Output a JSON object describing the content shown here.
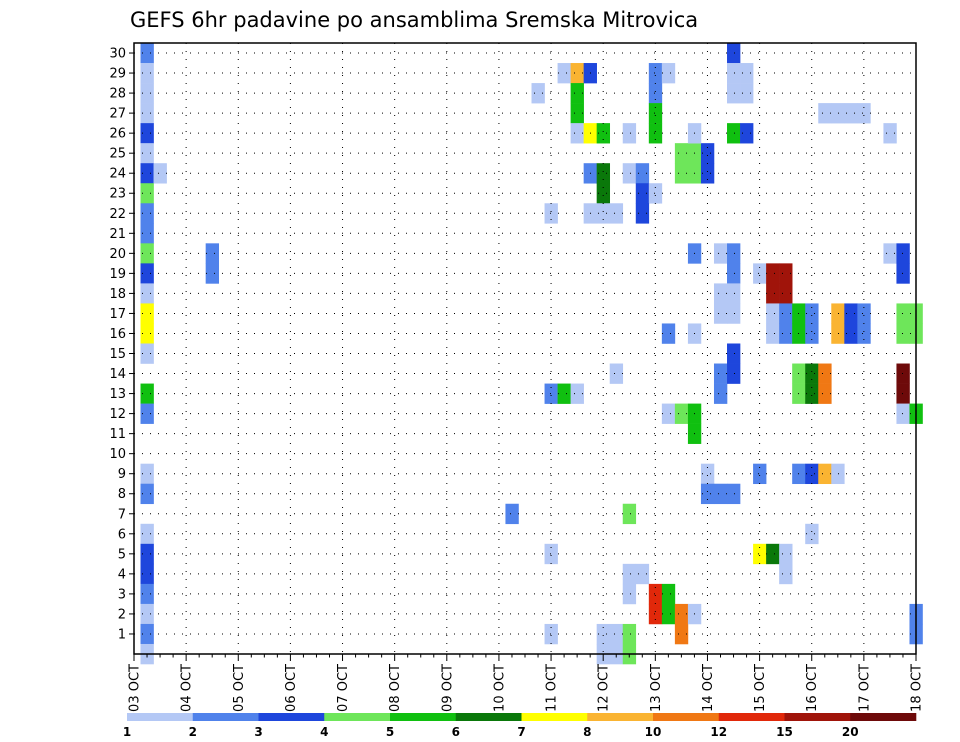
{
  "chart_data": {
    "type": "heatmap",
    "title": "GEFS 6hr padavine po ansamblima Sremska Mitrovica",
    "xlabel": "",
    "ylabel": "",
    "x_ticks": [
      "03 OCT",
      "04 OCT",
      "05 OCT",
      "06 OCT",
      "07 OCT",
      "08 OCT",
      "09 OCT",
      "10 OCT",
      "11 OCT",
      "12 OCT",
      "13 OCT",
      "14 OCT",
      "15 OCT",
      "16 OCT",
      "17 OCT",
      "18 OCT"
    ],
    "y_ticks": [
      "1",
      "2",
      "3",
      "4",
      "5",
      "6",
      "7",
      "8",
      "9",
      "10",
      "11",
      "12",
      "13",
      "14",
      "15",
      "16",
      "17",
      "18",
      "19",
      "20",
      "21",
      "22",
      "23",
      "24",
      "25",
      "26",
      "27",
      "28",
      "29",
      "30"
    ],
    "x_range": [
      "03 OCT 00Z",
      "18 OCT 00Z"
    ],
    "y_range": [
      0,
      30
    ],
    "time_step_hours": 6,
    "grid": true,
    "legend": "bottom",
    "color_levels": [
      1,
      2,
      3,
      4,
      5,
      6,
      7,
      8,
      10,
      12,
      15,
      20
    ],
    "level_labels": [
      "1",
      "2",
      "3",
      "4",
      "5",
      "6",
      "7",
      "8",
      "10",
      "12",
      "15",
      "20"
    ],
    "level_colors": [
      "#b4c8f5",
      "#5082eb",
      "#1e46dc",
      "#6ee65a",
      "#10c010",
      "#0a780a",
      "#ffff00",
      "#fab432",
      "#f07814",
      "#e1280a",
      "#a0140a",
      "#6e0a0a"
    ],
    "cells": [
      {
        "member": 30,
        "t": 1,
        "level": 2
      },
      {
        "member": 29,
        "t": 1,
        "level": 1
      },
      {
        "member": 28,
        "t": 1,
        "level": 1
      },
      {
        "member": 27,
        "t": 1,
        "level": 1
      },
      {
        "member": 26,
        "t": 1,
        "level": 3
      },
      {
        "member": 25,
        "t": 1,
        "level": 1
      },
      {
        "member": 24,
        "t": 1,
        "level": 3
      },
      {
        "member": 24,
        "t": 2,
        "level": 1
      },
      {
        "member": 23,
        "t": 1,
        "level": 4
      },
      {
        "member": 22,
        "t": 1,
        "level": 2
      },
      {
        "member": 21,
        "t": 1,
        "level": 2
      },
      {
        "member": 20,
        "t": 1,
        "level": 4
      },
      {
        "member": 19,
        "t": 1,
        "level": 3
      },
      {
        "member": 18,
        "t": 1,
        "level": 1
      },
      {
        "member": 17,
        "t": 1,
        "level": 7
      },
      {
        "member": 16,
        "t": 1,
        "level": 7
      },
      {
        "member": 15,
        "t": 1,
        "level": 1
      },
      {
        "member": 13,
        "t": 1,
        "level": 5
      },
      {
        "member": 12,
        "t": 1,
        "level": 2
      },
      {
        "member": 9,
        "t": 1,
        "level": 1
      },
      {
        "member": 8,
        "t": 1,
        "level": 2
      },
      {
        "member": 6,
        "t": 1,
        "level": 1
      },
      {
        "member": 5,
        "t": 1,
        "level": 3
      },
      {
        "member": 4,
        "t": 1,
        "level": 3
      },
      {
        "member": 3,
        "t": 1,
        "level": 2
      },
      {
        "member": 2,
        "t": 1,
        "level": 1
      },
      {
        "member": 1,
        "t": 1,
        "level": 2
      },
      {
        "member": 0,
        "t": 1,
        "level": 1
      },
      {
        "member": 20,
        "t": 6,
        "level": 2
      },
      {
        "member": 19,
        "t": 6,
        "level": 2
      },
      {
        "member": 7,
        "t": 29,
        "level": 2
      },
      {
        "member": 28,
        "t": 31,
        "level": 1
      },
      {
        "member": 13,
        "t": 32,
        "level": 2
      },
      {
        "member": 22,
        "t": 32,
        "level": 1
      },
      {
        "member": 5,
        "t": 32,
        "level": 1
      },
      {
        "member": 1,
        "t": 32,
        "level": 1
      },
      {
        "member": 29,
        "t": 33,
        "level": 1
      },
      {
        "member": 29,
        "t": 34,
        "level": 8
      },
      {
        "member": 29,
        "t": 35,
        "level": 3
      },
      {
        "member": 28,
        "t": 34,
        "level": 5
      },
      {
        "member": 27,
        "t": 34,
        "level": 5
      },
      {
        "member": 26,
        "t": 34,
        "level": 1
      },
      {
        "member": 26,
        "t": 35,
        "level": 7
      },
      {
        "member": 26,
        "t": 36,
        "level": 5
      },
      {
        "member": 24,
        "t": 35,
        "level": 2
      },
      {
        "member": 24,
        "t": 36,
        "level": 6
      },
      {
        "member": 23,
        "t": 36,
        "level": 6
      },
      {
        "member": 22,
        "t": 35,
        "level": 1
      },
      {
        "member": 22,
        "t": 36,
        "level": 1
      },
      {
        "member": 22,
        "t": 37,
        "level": 1
      },
      {
        "member": 13,
        "t": 33,
        "level": 5
      },
      {
        "member": 13,
        "t": 34,
        "level": 1
      },
      {
        "member": 14,
        "t": 37,
        "level": 1
      },
      {
        "member": 1,
        "t": 36,
        "level": 1
      },
      {
        "member": 1,
        "t": 37,
        "level": 1
      },
      {
        "member": 1,
        "t": 38,
        "level": 4
      },
      {
        "member": 0,
        "t": 36,
        "level": 1
      },
      {
        "member": 0,
        "t": 37,
        "level": 1
      },
      {
        "member": 0,
        "t": 38,
        "level": 4
      },
      {
        "member": 4,
        "t": 38,
        "level": 1
      },
      {
        "member": 3,
        "t": 38,
        "level": 1
      },
      {
        "member": 4,
        "t": 39,
        "level": 1
      },
      {
        "member": 7,
        "t": 38,
        "level": 4
      },
      {
        "member": 26,
        "t": 38,
        "level": 1
      },
      {
        "member": 24,
        "t": 38,
        "level": 1
      },
      {
        "member": 24,
        "t": 39,
        "level": 2
      },
      {
        "member": 23,
        "t": 39,
        "level": 3
      },
      {
        "member": 23,
        "t": 40,
        "level": 1
      },
      {
        "member": 22,
        "t": 39,
        "level": 3
      },
      {
        "member": 29,
        "t": 40,
        "level": 2
      },
      {
        "member": 29,
        "t": 41,
        "level": 1
      },
      {
        "member": 28,
        "t": 40,
        "level": 2
      },
      {
        "member": 27,
        "t": 40,
        "level": 5
      },
      {
        "member": 26,
        "t": 40,
        "level": 5
      },
      {
        "member": 3,
        "t": 40,
        "level": 10
      },
      {
        "member": 2,
        "t": 40,
        "level": 10
      },
      {
        "member": 3,
        "t": 41,
        "level": 5
      },
      {
        "member": 2,
        "t": 41,
        "level": 5
      },
      {
        "member": 16,
        "t": 41,
        "level": 2
      },
      {
        "member": 12,
        "t": 41,
        "level": 1
      },
      {
        "member": 12,
        "t": 42,
        "level": 4
      },
      {
        "member": 12,
        "t": 43,
        "level": 5
      },
      {
        "member": 11,
        "t": 43,
        "level": 5
      },
      {
        "member": 25,
        "t": 42,
        "level": 4
      },
      {
        "member": 25,
        "t": 43,
        "level": 4
      },
      {
        "member": 24,
        "t": 42,
        "level": 4
      },
      {
        "member": 24,
        "t": 43,
        "level": 4
      },
      {
        "member": 24,
        "t": 44,
        "level": 3
      },
      {
        "member": 25,
        "t": 44,
        "level": 3
      },
      {
        "member": 26,
        "t": 43,
        "level": 1
      },
      {
        "member": 20,
        "t": 43,
        "level": 2
      },
      {
        "member": 16,
        "t": 43,
        "level": 1
      },
      {
        "member": 2,
        "t": 42,
        "level": 9
      },
      {
        "member": 1,
        "t": 42,
        "level": 9
      },
      {
        "member": 2,
        "t": 43,
        "level": 1
      },
      {
        "member": 9,
        "t": 44,
        "level": 1
      },
      {
        "member": 8,
        "t": 44,
        "level": 2
      },
      {
        "member": 8,
        "t": 45,
        "level": 2
      },
      {
        "member": 8,
        "t": 46,
        "level": 2
      },
      {
        "member": 20,
        "t": 45,
        "level": 1
      },
      {
        "member": 20,
        "t": 46,
        "level": 2
      },
      {
        "member": 19,
        "t": 46,
        "level": 2
      },
      {
        "member": 17,
        "t": 45,
        "level": 1
      },
      {
        "member": 17,
        "t": 46,
        "level": 1
      },
      {
        "member": 18,
        "t": 45,
        "level": 1
      },
      {
        "member": 18,
        "t": 46,
        "level": 1
      },
      {
        "member": 14,
        "t": 45,
        "level": 2
      },
      {
        "member": 13,
        "t": 45,
        "level": 2
      },
      {
        "member": 30,
        "t": 46,
        "level": 3
      },
      {
        "member": 29,
        "t": 46,
        "level": 1
      },
      {
        "member": 29,
        "t": 47,
        "level": 1
      },
      {
        "member": 28,
        "t": 46,
        "level": 1
      },
      {
        "member": 28,
        "t": 47,
        "level": 1
      },
      {
        "member": 26,
        "t": 46,
        "level": 5
      },
      {
        "member": 26,
        "t": 47,
        "level": 3
      },
      {
        "member": 15,
        "t": 46,
        "level": 3
      },
      {
        "member": 14,
        "t": 46,
        "level": 3
      },
      {
        "member": 19,
        "t": 48,
        "level": 1
      },
      {
        "member": 19,
        "t": 49,
        "level": 11
      },
      {
        "member": 19,
        "t": 50,
        "level": 11
      },
      {
        "member": 18,
        "t": 49,
        "level": 11
      },
      {
        "member": 18,
        "t": 50,
        "level": 11
      },
      {
        "member": 9,
        "t": 48,
        "level": 2
      },
      {
        "member": 5,
        "t": 48,
        "level": 7
      },
      {
        "member": 5,
        "t": 49,
        "level": 6
      },
      {
        "member": 5,
        "t": 50,
        "level": 1
      },
      {
        "member": 4,
        "t": 50,
        "level": 1
      },
      {
        "member": 17,
        "t": 49,
        "level": 1
      },
      {
        "member": 16,
        "t": 49,
        "level": 1
      },
      {
        "member": 17,
        "t": 50,
        "level": 2
      },
      {
        "member": 16,
        "t": 50,
        "level": 2
      },
      {
        "member": 17,
        "t": 51,
        "level": 5
      },
      {
        "member": 16,
        "t": 51,
        "level": 5
      },
      {
        "member": 17,
        "t": 52,
        "level": 2
      },
      {
        "member": 16,
        "t": 52,
        "level": 2
      },
      {
        "member": 13,
        "t": 51,
        "level": 4
      },
      {
        "member": 13,
        "t": 52,
        "level": 6
      },
      {
        "member": 13,
        "t": 53,
        "level": 9
      },
      {
        "member": 14,
        "t": 51,
        "level": 4
      },
      {
        "member": 14,
        "t": 52,
        "level": 6
      },
      {
        "member": 14,
        "t": 53,
        "level": 9
      },
      {
        "member": 9,
        "t": 51,
        "level": 2
      },
      {
        "member": 9,
        "t": 52,
        "level": 3
      },
      {
        "member": 9,
        "t": 53,
        "level": 8
      },
      {
        "member": 9,
        "t": 54,
        "level": 1
      },
      {
        "member": 6,
        "t": 52,
        "level": 1
      },
      {
        "member": 17,
        "t": 54,
        "level": 8
      },
      {
        "member": 16,
        "t": 54,
        "level": 8
      },
      {
        "member": 17,
        "t": 55,
        "level": 3
      },
      {
        "member": 16,
        "t": 55,
        "level": 3
      },
      {
        "member": 17,
        "t": 56,
        "level": 2
      },
      {
        "member": 16,
        "t": 56,
        "level": 2
      },
      {
        "member": 27,
        "t": 53,
        "level": 1
      },
      {
        "member": 27,
        "t": 54,
        "level": 1
      },
      {
        "member": 27,
        "t": 55,
        "level": 1
      },
      {
        "member": 27,
        "t": 56,
        "level": 1
      },
      {
        "member": 26,
        "t": 58,
        "level": 1
      },
      {
        "member": 20,
        "t": 58,
        "level": 1
      },
      {
        "member": 20,
        "t": 59,
        "level": 3
      },
      {
        "member": 19,
        "t": 59,
        "level": 3
      },
      {
        "member": 17,
        "t": 59,
        "level": 4
      },
      {
        "member": 17,
        "t": 60,
        "level": 4
      },
      {
        "member": 16,
        "t": 59,
        "level": 4
      },
      {
        "member": 16,
        "t": 60,
        "level": 4
      },
      {
        "member": 13,
        "t": 59,
        "level": 12
      },
      {
        "member": 14,
        "t": 59,
        "level": 12
      },
      {
        "member": 12,
        "t": 59,
        "level": 1
      },
      {
        "member": 12,
        "t": 60,
        "level": 5
      },
      {
        "member": 2,
        "t": 60,
        "level": 2
      },
      {
        "member": 1,
        "t": 60,
        "level": 2
      }
    ]
  }
}
